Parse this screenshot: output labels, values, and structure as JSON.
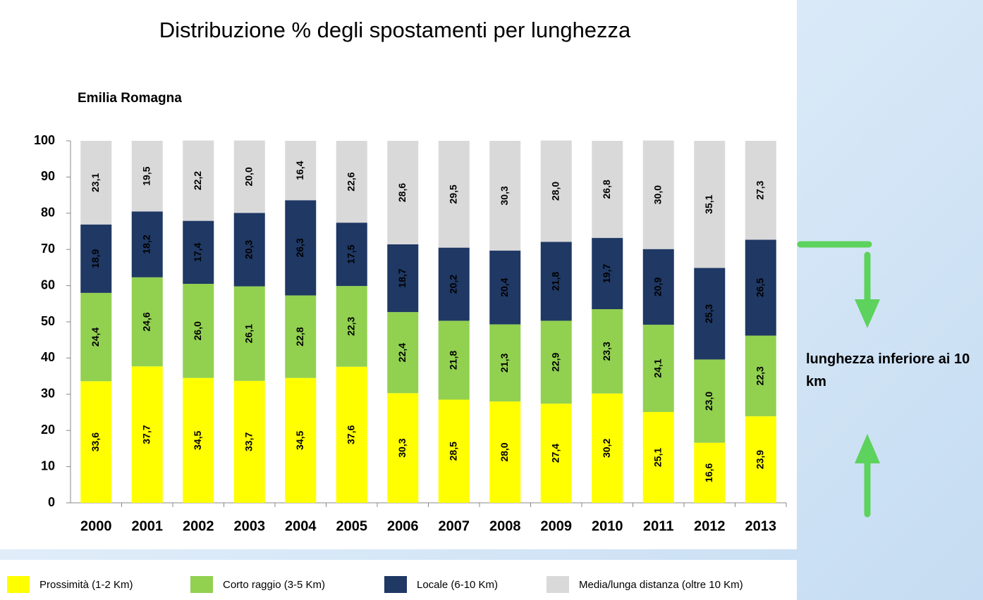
{
  "chart_data": {
    "type": "stacked_bar",
    "title": "Distribuzione % degli spostamenti per lunghezza",
    "subtitle": "Emilia Romagna",
    "annotation": "lunghezza inferiore ai 10 km",
    "categories": [
      "2000",
      "2001",
      "2002",
      "2003",
      "2004",
      "2005",
      "2006",
      "2007",
      "2008",
      "2009",
      "2010",
      "2011",
      "2012",
      "2013"
    ],
    "ylim": [
      0,
      100
    ],
    "yticks": [
      0,
      10,
      20,
      30,
      40,
      50,
      60,
      70,
      80,
      90,
      100
    ],
    "grid": false,
    "legend": "bottom",
    "series": [
      {
        "name": "Prossimità (1-2 Km)",
        "color": "#ffff00",
        "values": [
          33.6,
          37.7,
          34.5,
          33.7,
          34.5,
          37.6,
          30.3,
          28.5,
          28.0,
          27.4,
          30.2,
          25.1,
          16.6,
          23.9
        ],
        "value_labels": [
          "33,6",
          "37,7",
          "34,5",
          "33,7",
          "34,5",
          "37,6",
          "30,3",
          "28,5",
          "28,0",
          "27,4",
          "30,2",
          "25,1",
          "16,6",
          "23,9"
        ]
      },
      {
        "name": "Corto raggio (3-5 Km)",
        "color": "#92d050",
        "values": [
          24.4,
          24.6,
          26.0,
          26.1,
          22.8,
          22.3,
          22.4,
          21.8,
          21.3,
          22.9,
          23.3,
          24.1,
          23.0,
          22.3
        ],
        "value_labels": [
          "24,4",
          "24,6",
          "26,0",
          "26,1",
          "22,8",
          "22,3",
          "22,4",
          "21,8",
          "21,3",
          "22,9",
          "23,3",
          "24,1",
          "23,0",
          "22,3"
        ]
      },
      {
        "name": "Locale (6-10 Km)",
        "color": "#1f3864",
        "values": [
          18.9,
          18.2,
          17.4,
          20.3,
          26.3,
          17.5,
          18.7,
          20.2,
          20.4,
          21.8,
          19.7,
          20.9,
          25.3,
          26.5
        ],
        "value_labels": [
          "18,9",
          "18,2",
          "17,4",
          "20,3",
          "26,3",
          "17,5",
          "18,7",
          "20,2",
          "20,4",
          "21,8",
          "19,7",
          "20,9",
          "25,3",
          "26,5"
        ]
      },
      {
        "name": "Media/lunga distanza (oltre 10 Km)",
        "color": "#d9d9d9",
        "values": [
          23.1,
          19.5,
          22.2,
          20.0,
          16.4,
          22.6,
          28.6,
          29.5,
          30.3,
          28.0,
          26.8,
          30.0,
          35.1,
          27.3
        ],
        "value_labels": [
          "23,1",
          "19,5",
          "22,2",
          "20,0",
          "16,4",
          "22,6",
          "28,6",
          "29,5",
          "30,3",
          "28,0",
          "26,8",
          "30,0",
          "35,1",
          "27,3"
        ]
      }
    ]
  }
}
